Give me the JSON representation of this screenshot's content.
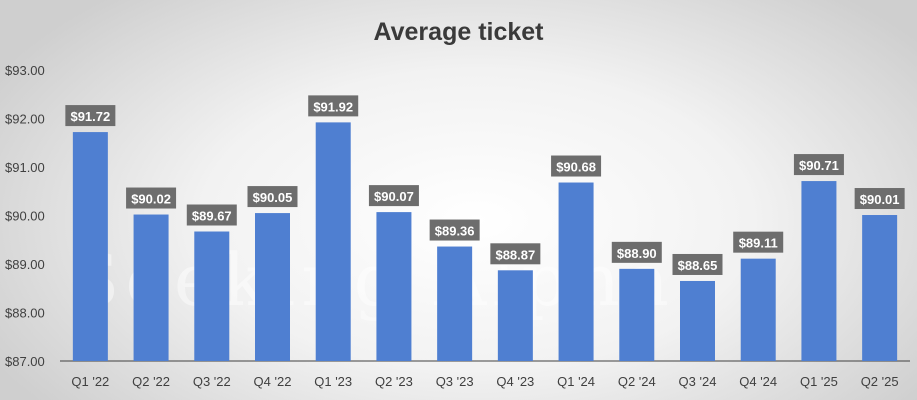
{
  "chart_data": {
    "type": "bar",
    "title": "Average ticket",
    "xlabel": "",
    "ylabel": "",
    "categories": [
      "Q1 '22",
      "Q2 '22",
      "Q3 '22",
      "Q4 '22",
      "Q1 '23",
      "Q2 '23",
      "Q3 '23",
      "Q4 '23",
      "Q1 '24",
      "Q2 '24",
      "Q3 '24",
      "Q4 '24",
      "Q1 '25",
      "Q2 '25"
    ],
    "values": [
      91.72,
      90.02,
      89.67,
      90.05,
      91.92,
      90.07,
      89.36,
      88.87,
      90.68,
      88.9,
      88.65,
      89.11,
      90.71,
      90.01
    ],
    "data_labels": [
      "$91.72",
      "$90.02",
      "$89.67",
      "$90.05",
      "$91.92",
      "$90.07",
      "$89.36",
      "$88.87",
      "$90.68",
      "$88.90",
      "$88.65",
      "$89.11",
      "$90.71",
      "$90.01"
    ],
    "y_ticks": [
      87,
      88,
      89,
      90,
      91,
      92,
      93
    ],
    "y_tick_labels": [
      "$87.00",
      "$88.00",
      "$89.00",
      "$90.00",
      "$91.00",
      "$92.00",
      "$93.00"
    ],
    "ylim": [
      87,
      93
    ],
    "grid": false,
    "legend": "none",
    "colors": {
      "bar": "#4f7fd1",
      "label_box": "#6d6d6d",
      "axis": "#404040"
    }
  },
  "watermark": "Seeking Alpha"
}
